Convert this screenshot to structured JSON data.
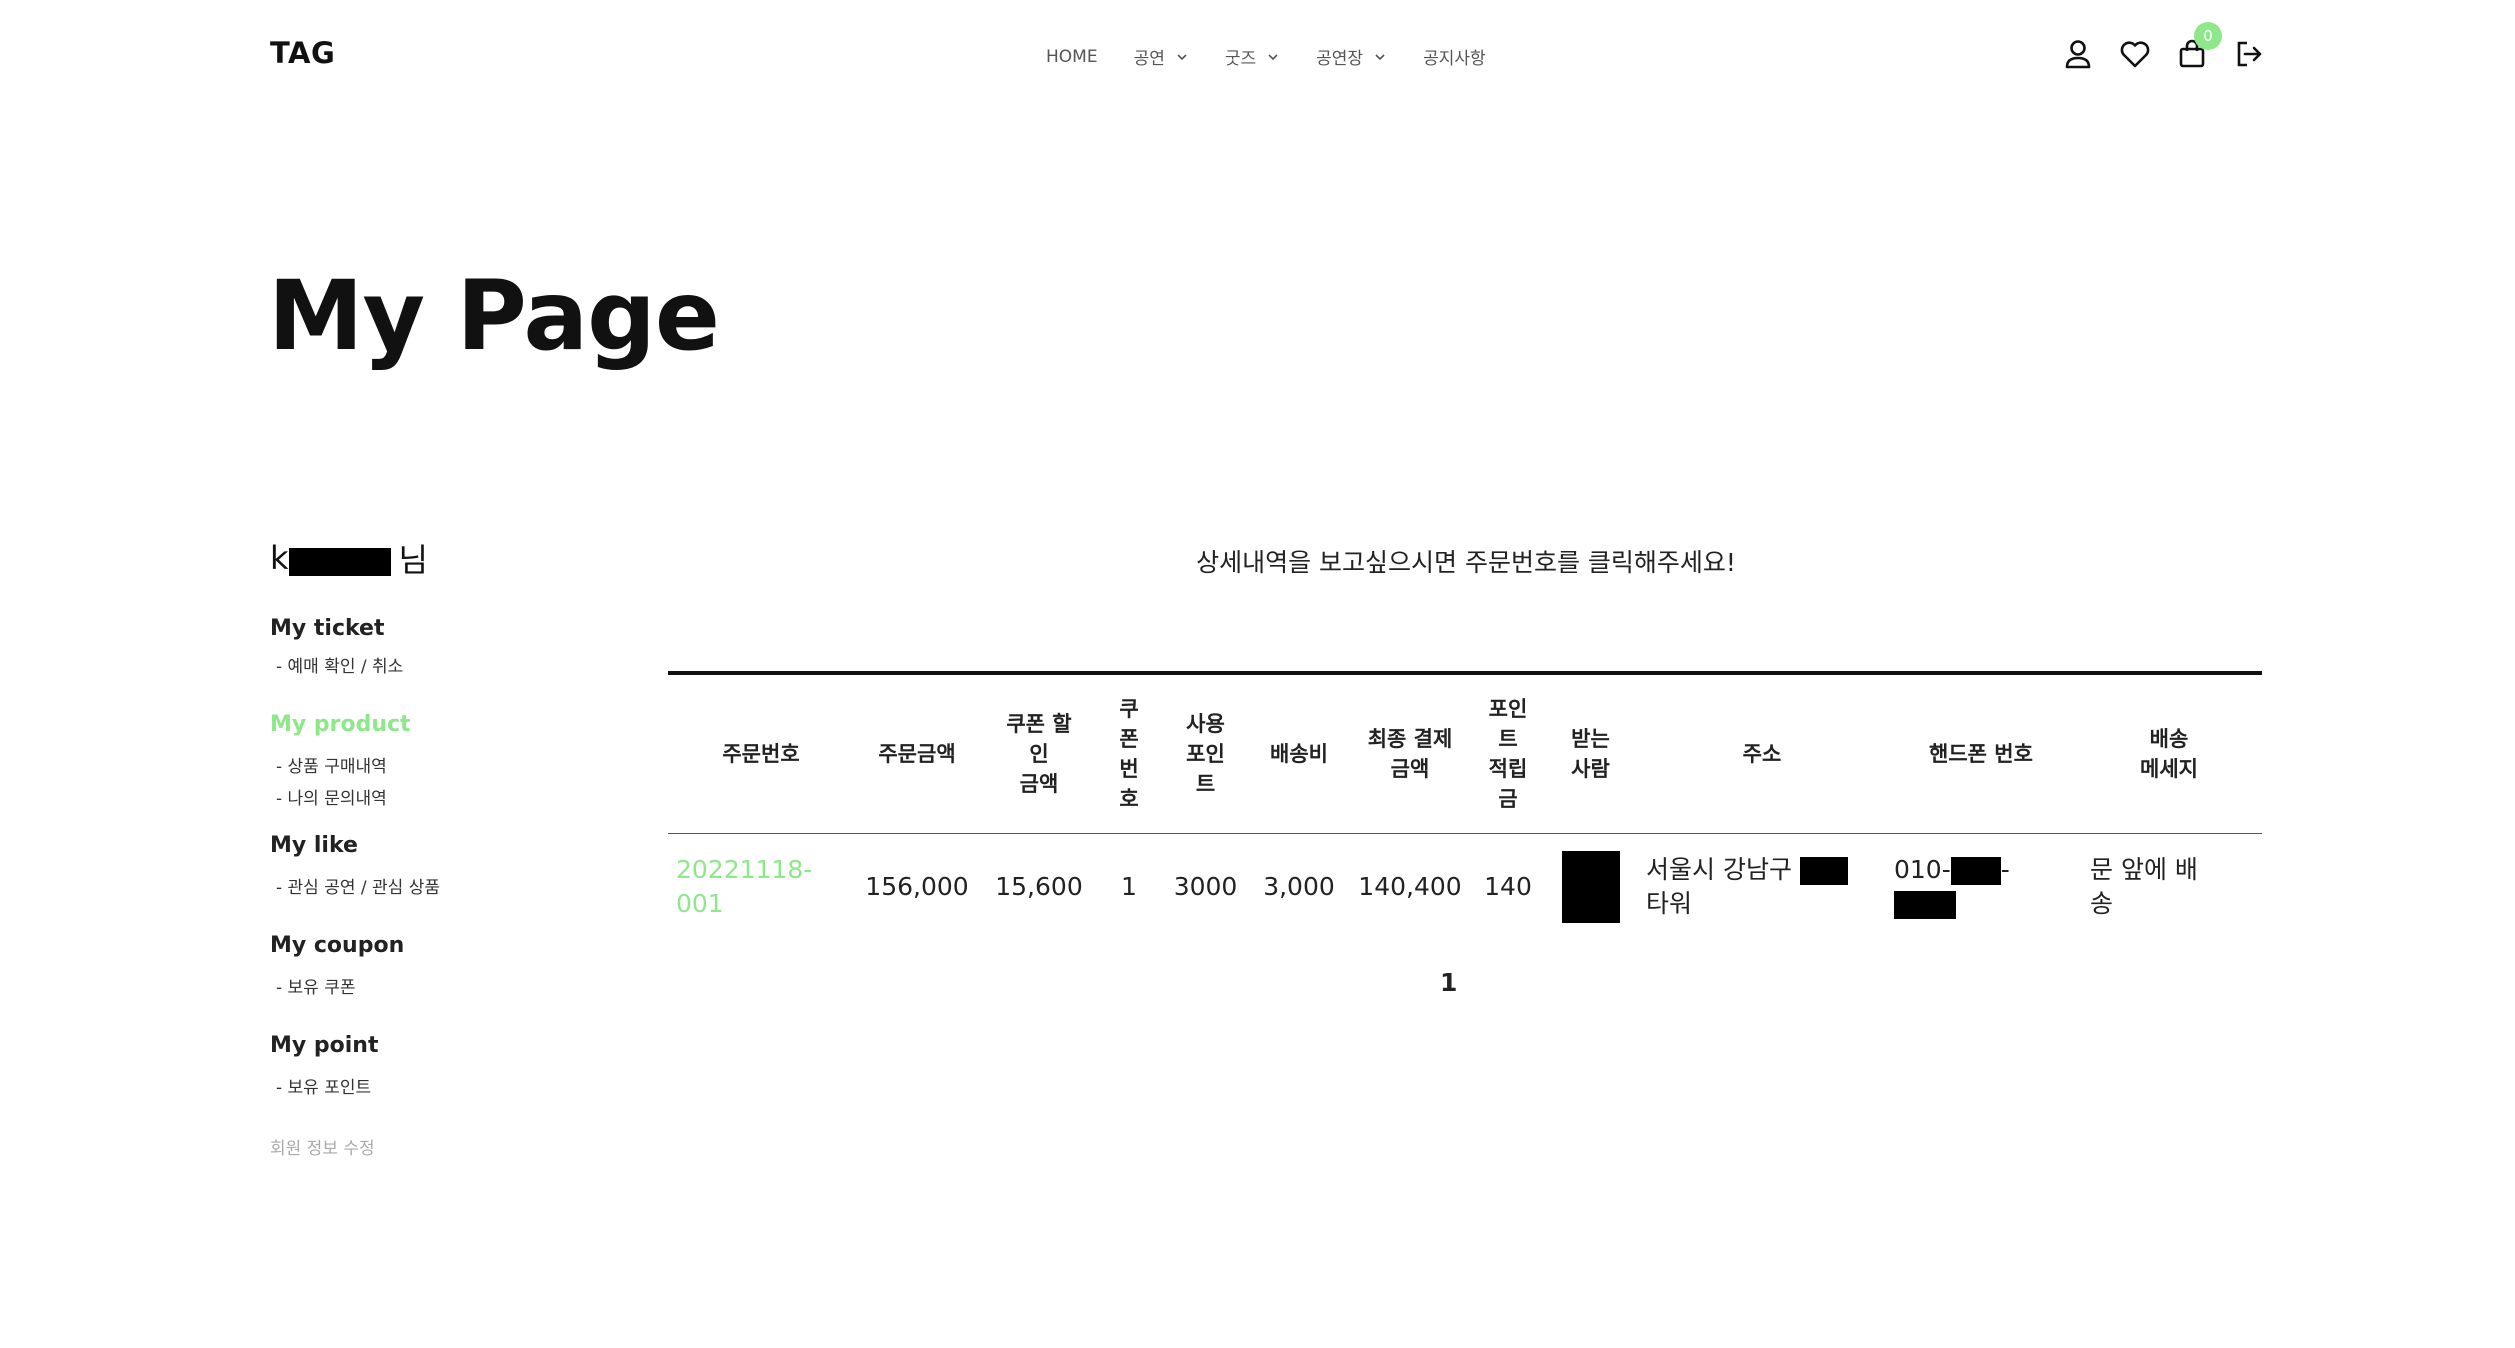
{
  "header": {
    "logo": "TAG",
    "nav": [
      {
        "label": "HOME",
        "has_dropdown": false
      },
      {
        "label": "공연",
        "has_dropdown": true
      },
      {
        "label": "굿즈",
        "has_dropdown": true
      },
      {
        "label": "공연장",
        "has_dropdown": true
      },
      {
        "label": "공지사항",
        "has_dropdown": false
      }
    ],
    "icons": [
      "user-icon",
      "heart-icon",
      "cart-icon",
      "logout-icon"
    ],
    "cart_count": "0",
    "accent_color": "#8ee88a"
  },
  "page_title": "My Page",
  "sidebar": {
    "user_prefix": "k",
    "user_suffix": "님",
    "sections": [
      {
        "title": "My ticket",
        "active": false,
        "links": [
          "- 예매 확인 / 취소"
        ]
      },
      {
        "title": "My product",
        "active": true,
        "links": [
          "- 상품 구매내역",
          "- 나의 문의내역"
        ]
      },
      {
        "title": "My like",
        "active": false,
        "links": [
          "- 관심 공연 / 관심 상품"
        ]
      },
      {
        "title": "My coupon",
        "active": false,
        "links": [
          "- 보유 쿠폰"
        ]
      },
      {
        "title": "My point",
        "active": false,
        "links": [
          "- 보유 포인트"
        ]
      }
    ],
    "edit_profile": "회원 정보 수정"
  },
  "main": {
    "hint": "상세내역을 보고싶으시면 주문번호를 클릭해주세요!",
    "columns": [
      "주문번호",
      "주문금액",
      "쿠폰 할\n인\n금액",
      "쿠\n폰\n번\n호",
      "사용\n포인\n트",
      "배송비",
      "최종 결제\n금액",
      "포인\n트\n적립\n금",
      "받는\n사람",
      "주소",
      "핸드폰 번호",
      "배송\n메세지"
    ],
    "rows": [
      {
        "order_no": "20221118-001",
        "order_amount": "156,000",
        "coupon_discount": "15,600",
        "coupon_no": "1",
        "used_points": "3000",
        "shipping": "3,000",
        "final_amount": "140,400",
        "points_earned": "140",
        "recipient": "",
        "address_prefix": "서울시 강남구",
        "address_suffix": "타워",
        "phone_prefix": "010-",
        "phone_mid_suffix": "-",
        "message": "문 앞에 배송"
      }
    ],
    "pagination": "1"
  }
}
